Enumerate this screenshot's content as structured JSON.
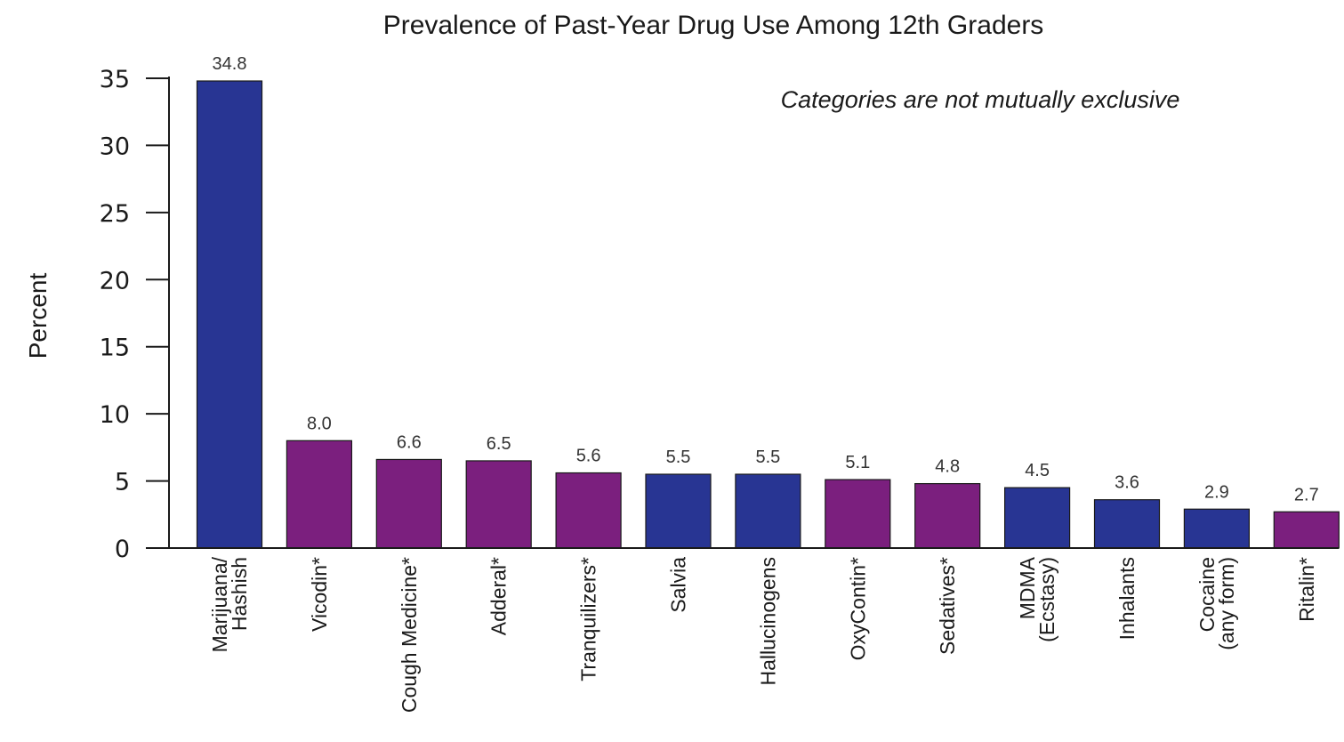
{
  "chart_data": {
    "type": "bar",
    "title": "Prevalence of Past-Year Drug Use Among 12th Graders",
    "annotation": "Categories are not mutually exclusive",
    "xlabel": "",
    "ylabel": "Percent",
    "ylim": [
      0,
      35
    ],
    "yticks": [
      0,
      5,
      10,
      15,
      20,
      25,
      30,
      35
    ],
    "legend": "none",
    "grid": false,
    "colors": {
      "blue": "#283593",
      "purple": "#7b1f7e"
    },
    "categories": [
      [
        "Marijuana/",
        "Hashish"
      ],
      [
        "Vicodin*"
      ],
      [
        "Cough Medicine*"
      ],
      [
        "Adderal*"
      ],
      [
        "Tranquilizers*"
      ],
      [
        "Salvia"
      ],
      [
        "Hallucinogens"
      ],
      [
        "OxyContin*"
      ],
      [
        "Sedatives*"
      ],
      [
        "MDMA",
        "(Ecstasy)"
      ],
      [
        "Inhalants"
      ],
      [
        "Cocaine",
        "(any form)"
      ],
      [
        "Ritalin*"
      ]
    ],
    "values": [
      34.8,
      8.0,
      6.6,
      6.5,
      5.6,
      5.5,
      5.5,
      5.1,
      4.8,
      4.5,
      3.6,
      2.9,
      2.7
    ],
    "value_labels": [
      "34.8",
      "8.0",
      "6.6",
      "6.5",
      "5.6",
      "5.5",
      "5.5",
      "5.1",
      "4.8",
      "4.5",
      "3.6",
      "2.9",
      "2.7"
    ],
    "bar_colors": [
      "blue",
      "purple",
      "purple",
      "purple",
      "purple",
      "blue",
      "blue",
      "purple",
      "purple",
      "blue",
      "blue",
      "blue",
      "purple"
    ]
  }
}
